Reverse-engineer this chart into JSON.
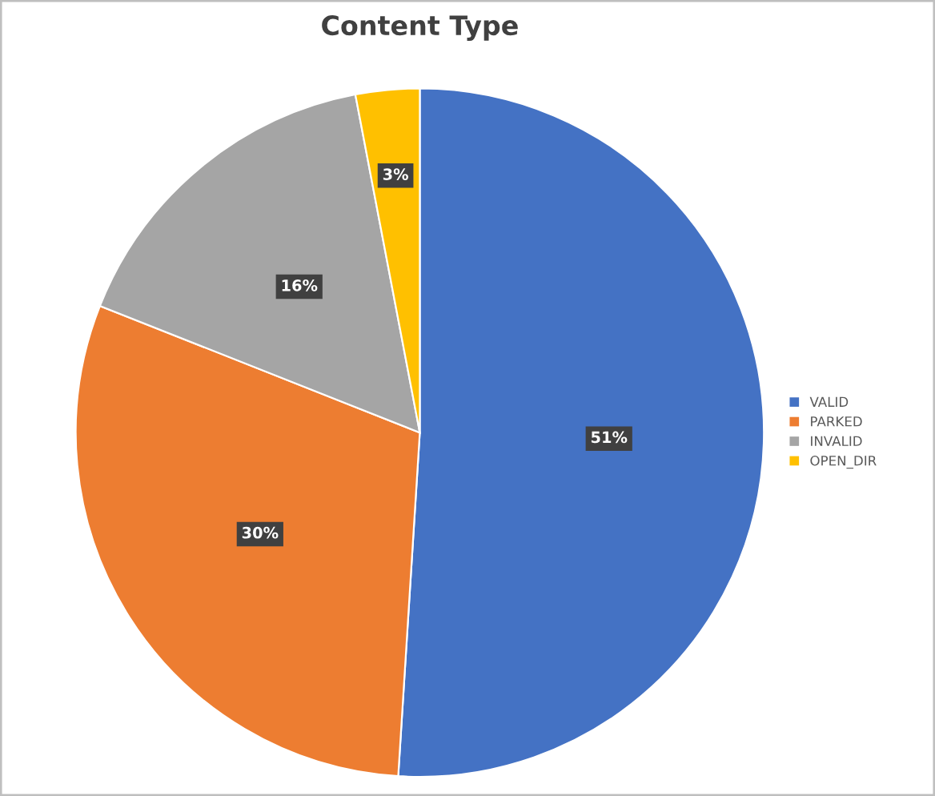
{
  "chart_data": {
    "type": "pie",
    "title": "Content Type",
    "categories": [
      "VALID",
      "PARKED",
      "INVALID",
      "OPEN_DIR"
    ],
    "values": [
      51,
      30,
      16,
      3
    ],
    "colors": [
      "#4472c4",
      "#ed7d31",
      "#a5a5a5",
      "#ffc000"
    ],
    "value_labels": [
      "51%",
      "30%",
      "16%",
      "3%"
    ],
    "legend": "right"
  }
}
